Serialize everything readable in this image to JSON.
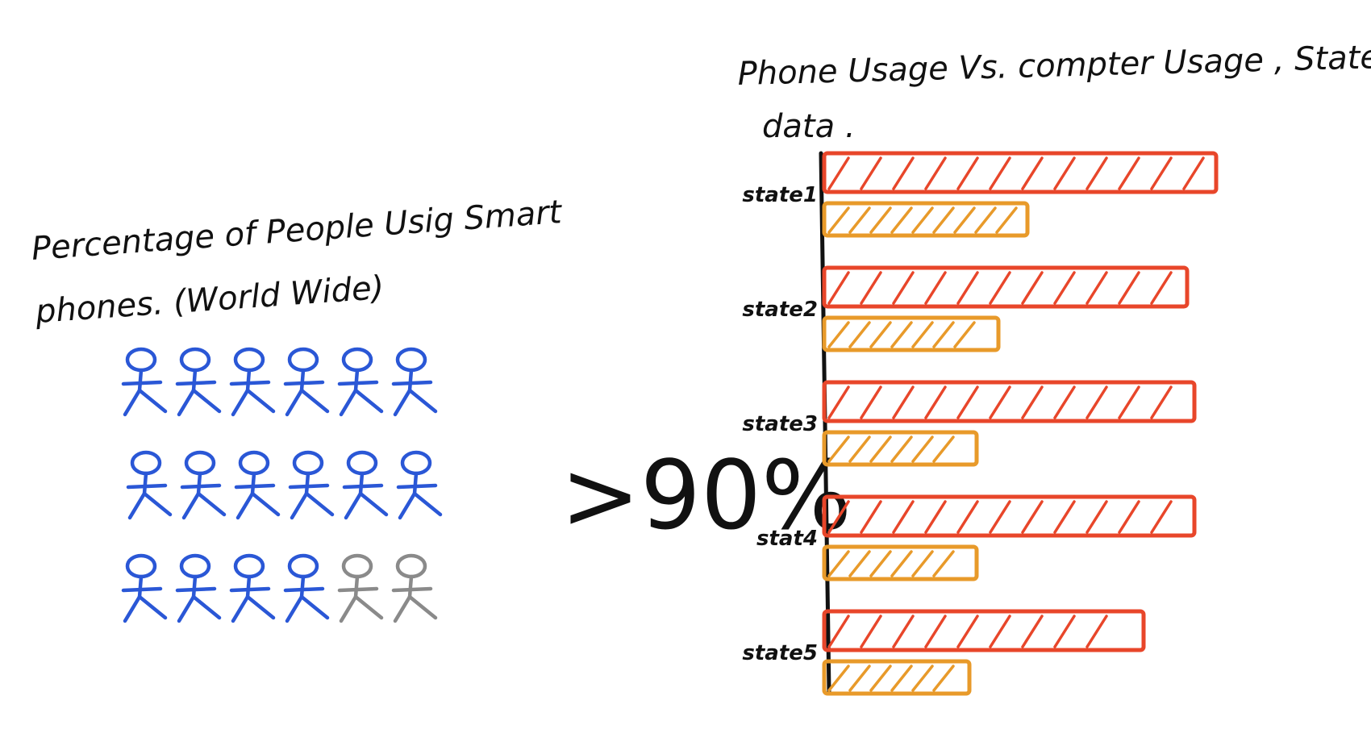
{
  "pictograph": {
    "title_line1": "Percentage of People Usig Smart",
    "title_line2": "phones. (World Wide)",
    "rows": 3,
    "per_row": 6,
    "highlighted_count": 16,
    "total_count": 18,
    "highlight_color": "#2a57d6",
    "muted_color": "#8a8a8a",
    "icon": "stick-figure-icon",
    "callout": ">90%"
  },
  "chart_data": {
    "type": "bar",
    "orientation": "horizontal",
    "title_line1": "Phone Usage Vs. compter Usage , State",
    "title_line2": "data .",
    "categories": [
      "state1",
      "state2",
      "state3",
      "stat4",
      "state5"
    ],
    "series": [
      {
        "color": "#e8462a",
        "values": [
          54,
          50,
          51,
          51,
          44
        ]
      },
      {
        "color": "#e89a2a",
        "values": [
          28,
          24,
          21,
          21,
          20
        ]
      }
    ],
    "xlim": [
      0,
      60
    ],
    "grid": false,
    "legend": "none"
  }
}
